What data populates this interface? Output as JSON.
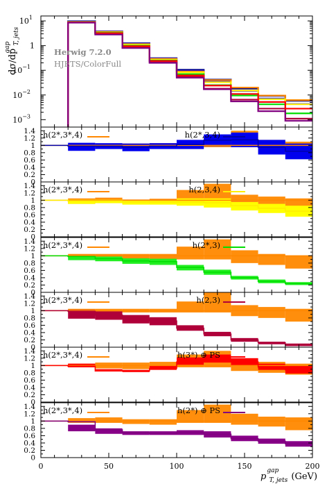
{
  "chart_data": {
    "type": "line",
    "xlabel": "p_{T,jets}^{gap} (GeV)",
    "xlabel_main": "p",
    "xlabel_sup": "gap",
    "xlabel_sub": "T, jets",
    "xlabel_unit": "(GeV)",
    "ylabel": "dσ/dp_{T,jets}^{gap}",
    "ylabel_main": "dσ/dp",
    "ylabel_sup": "gap",
    "ylabel_sub": "T, jets",
    "xlim": [
      0,
      200
    ],
    "x_ticks": [
      "0",
      "50",
      "100",
      "150",
      "200"
    ],
    "x_tick_values": [
      0,
      50,
      100,
      150,
      200
    ],
    "bin_edges": [
      20,
      40,
      60,
      80,
      100,
      120,
      140,
      160,
      180,
      200
    ],
    "annotation_line1": "Herwig 7.2.0",
    "annotation_line2": "HJETS/ColorFull",
    "main": {
      "ylim_log10": [
        -3.3,
        1.2
      ],
      "y_ticks": [
        {
          "label": "10",
          "exp": "1",
          "value": 10
        },
        {
          "label": "1",
          "exp": "",
          "value": 1
        },
        {
          "label": "10",
          "exp": "−1",
          "value": 0.1
        },
        {
          "label": "10",
          "exp": "−2",
          "value": 0.01
        },
        {
          "label": "10",
          "exp": "−3",
          "value": 0.001
        }
      ],
      "series": [
        {
          "color": "#000080",
          "values": [
            9.8,
            3.8,
            1.25,
            0.31,
            0.105,
            0.042,
            0.018,
            0.0092,
            0.0058
          ]
        },
        {
          "color": "#0000ff",
          "values": [
            9.5,
            3.7,
            1.2,
            0.3,
            0.095,
            0.036,
            0.0145,
            0.0072,
            0.0043
          ]
        },
        {
          "color": "#ff8800",
          "values": [
            9.2,
            3.6,
            1.15,
            0.29,
            0.09,
            0.04,
            0.02,
            0.0095,
            0.0062
          ]
        },
        {
          "color": "#ffee00",
          "values": [
            9.0,
            3.5,
            1.1,
            0.27,
            0.082,
            0.033,
            0.015,
            0.0068,
            0.0042
          ]
        },
        {
          "color": "#00dd00",
          "values": [
            8.9,
            3.3,
            1.0,
            0.25,
            0.07,
            0.025,
            0.0095,
            0.0042,
            0.0018
          ]
        },
        {
          "color": "#b0003a",
          "values": [
            8.7,
            3.1,
            0.9,
            0.22,
            0.055,
            0.018,
            0.0065,
            0.0028,
            0.0011
          ]
        },
        {
          "color": "#ff0000",
          "values": [
            8.8,
            3.2,
            0.95,
            0.24,
            0.062,
            0.024,
            0.011,
            0.0052,
            0.0028
          ]
        },
        {
          "color": "#800080",
          "values": [
            8.5,
            2.8,
            0.8,
            0.2,
            0.05,
            0.017,
            0.0055,
            0.0022,
            0.0009
          ]
        }
      ]
    },
    "ratio": {
      "ylim": [
        0,
        1.5
      ],
      "y_ticks": [
        "0",
        "0.2",
        "0.4",
        "0.6",
        "0.8",
        "1",
        "1.2",
        "1.4"
      ],
      "y_tick_values": [
        0,
        0.2,
        0.4,
        0.6,
        0.8,
        1.0,
        1.2,
        1.4
      ]
    },
    "ratio_panels": [
      {
        "ref_label": "h(2*,3*,4)",
        "ref_color": "#ff8800",
        "label": "h(2*,3,4)",
        "label_color": "#0000aa",
        "ref_band": [
          [
            0.97,
            1.03
          ],
          [
            0.95,
            1.05
          ],
          [
            0.95,
            1.05
          ],
          [
            0.95,
            1.06
          ],
          [
            0.95,
            1.1
          ],
          [
            0.95,
            1.25
          ],
          [
            0.95,
            1.4
          ],
          [
            0.8,
            1.15
          ],
          [
            0.75,
            1.1
          ]
        ],
        "band_color": "#0000ee",
        "band": [
          [
            0.85,
            1.07
          ],
          [
            0.9,
            1.06
          ],
          [
            0.84,
            1.05
          ],
          [
            0.9,
            1.06
          ],
          [
            0.9,
            1.15
          ],
          [
            0.98,
            1.3
          ],
          [
            0.95,
            1.35
          ],
          [
            0.75,
            1.15
          ],
          [
            0.62,
            1.05
          ]
        ],
        "line": [
          0.98,
          0.98,
          0.95,
          0.98,
          1.02,
          1.14,
          1.15,
          0.95,
          0.84
        ]
      },
      {
        "ref_label": "h(2*,3*,4)",
        "ref_color": "#ff8800",
        "label": "h(2,3,4)",
        "label_color": "#ffee00",
        "ref_band": [
          [
            0.9,
            1.05
          ],
          [
            0.92,
            1.07
          ],
          [
            0.9,
            1.02
          ],
          [
            0.9,
            1.04
          ],
          [
            0.95,
            1.28
          ],
          [
            0.95,
            1.45
          ],
          [
            0.9,
            1.15
          ],
          [
            0.8,
            1.1
          ],
          [
            0.7,
            1.05
          ]
        ],
        "band_color": "#ffff00",
        "band": [
          [
            0.9,
            1.02
          ],
          [
            0.92,
            1.02
          ],
          [
            0.88,
            1.0
          ],
          [
            0.88,
            1.0
          ],
          [
            0.85,
            1.05
          ],
          [
            0.8,
            1.05
          ],
          [
            0.72,
            0.95
          ],
          [
            0.65,
            0.9
          ],
          [
            0.55,
            0.85
          ]
        ],
        "line": [
          0.98,
          0.98,
          0.95,
          0.95,
          0.95,
          0.93,
          0.85,
          0.78,
          0.7
        ]
      },
      {
        "ref_label": "h(2*,3*,4)",
        "ref_color": "#ff8800",
        "label": "h(2*,3)",
        "label_color": "#00dd00",
        "ref_band": [
          [
            0.95,
            1.05
          ],
          [
            0.95,
            1.05
          ],
          [
            0.9,
            1.05
          ],
          [
            0.9,
            1.05
          ],
          [
            0.9,
            1.25
          ],
          [
            0.9,
            1.45
          ],
          [
            0.8,
            1.15
          ],
          [
            0.75,
            1.05
          ],
          [
            0.65,
            1.0
          ]
        ],
        "band_color": "#22ee22",
        "band": [
          [
            0.88,
            1.0
          ],
          [
            0.85,
            0.98
          ],
          [
            0.78,
            0.93
          ],
          [
            0.75,
            0.92
          ],
          [
            0.6,
            0.75
          ],
          [
            0.48,
            0.62
          ],
          [
            0.35,
            0.45
          ],
          [
            0.25,
            0.35
          ],
          [
            0.2,
            0.28
          ]
        ],
        "line": [
          0.98,
          0.92,
          0.86,
          0.84,
          0.68,
          0.55,
          0.4,
          0.3,
          0.24
        ]
      },
      {
        "ref_label": "h(2*,3*,4)",
        "ref_color": "#ff8800",
        "label": "h(2,3)",
        "label_color": "#b0003a",
        "ref_band": [
          [
            0.95,
            1.05
          ],
          [
            0.95,
            1.05
          ],
          [
            0.95,
            1.05
          ],
          [
            0.95,
            1.05
          ],
          [
            0.95,
            1.25
          ],
          [
            0.95,
            1.5
          ],
          [
            0.85,
            1.15
          ],
          [
            0.8,
            1.1
          ],
          [
            0.7,
            1.05
          ]
        ],
        "band_color": "#b0003a",
        "band": [
          [
            0.78,
            1.02
          ],
          [
            0.75,
            0.98
          ],
          [
            0.65,
            0.88
          ],
          [
            0.6,
            0.82
          ],
          [
            0.45,
            0.6
          ],
          [
            0.3,
            0.42
          ],
          [
            0.15,
            0.25
          ],
          [
            0.08,
            0.15
          ],
          [
            0.03,
            0.1
          ]
        ],
        "line": [
          0.98,
          0.88,
          0.78,
          0.72,
          0.52,
          0.36,
          0.2,
          0.12,
          0.07
        ]
      },
      {
        "ref_label": "h(2*,3*,4)",
        "ref_color": "#ff8800",
        "label": "h(3*) ⊕ PS",
        "label_color": "#ff0000",
        "ref_band": [
          [
            0.95,
            1.05
          ],
          [
            0.92,
            1.08
          ],
          [
            0.9,
            1.08
          ],
          [
            0.9,
            1.1
          ],
          [
            0.95,
            1.3
          ],
          [
            0.95,
            1.4
          ],
          [
            0.85,
            1.15
          ],
          [
            0.8,
            1.1
          ],
          [
            0.75,
            1.05
          ]
        ],
        "band_color": "#ff0000",
        "band": [
          [
            0.95,
            1.05
          ],
          [
            0.85,
            0.9
          ],
          [
            0.82,
            0.88
          ],
          [
            0.88,
            1.0
          ],
          [
            1.02,
            1.22
          ],
          [
            1.08,
            1.3
          ],
          [
            1.0,
            1.2
          ],
          [
            0.88,
            1.05
          ],
          [
            0.78,
            1.0
          ]
        ],
        "line": [
          0.98,
          0.85,
          0.85,
          0.92,
          1.1,
          1.18,
          1.1,
          0.96,
          0.88
        ]
      },
      {
        "ref_label": "h(2*,3*,4)",
        "ref_color": "#ff8800",
        "label": "h(2*) ⊕ PS",
        "label_color": "#800080",
        "ref_band": [
          [
            0.95,
            1.08
          ],
          [
            0.95,
            1.1
          ],
          [
            0.92,
            1.05
          ],
          [
            0.9,
            1.05
          ],
          [
            0.95,
            1.3
          ],
          [
            0.95,
            1.45
          ],
          [
            0.9,
            1.2
          ],
          [
            0.85,
            1.12
          ],
          [
            0.75,
            1.1
          ]
        ],
        "band_color": "#880088",
        "band": [
          [
            0.72,
            0.9
          ],
          [
            0.65,
            0.8
          ],
          [
            0.62,
            0.72
          ],
          [
            0.62,
            0.72
          ],
          [
            0.62,
            0.75
          ],
          [
            0.55,
            0.72
          ],
          [
            0.45,
            0.6
          ],
          [
            0.38,
            0.52
          ],
          [
            0.3,
            0.45
          ]
        ],
        "line": [
          0.98,
          0.76,
          0.68,
          0.66,
          0.68,
          0.64,
          0.52,
          0.45,
          0.38
        ]
      }
    ]
  }
}
